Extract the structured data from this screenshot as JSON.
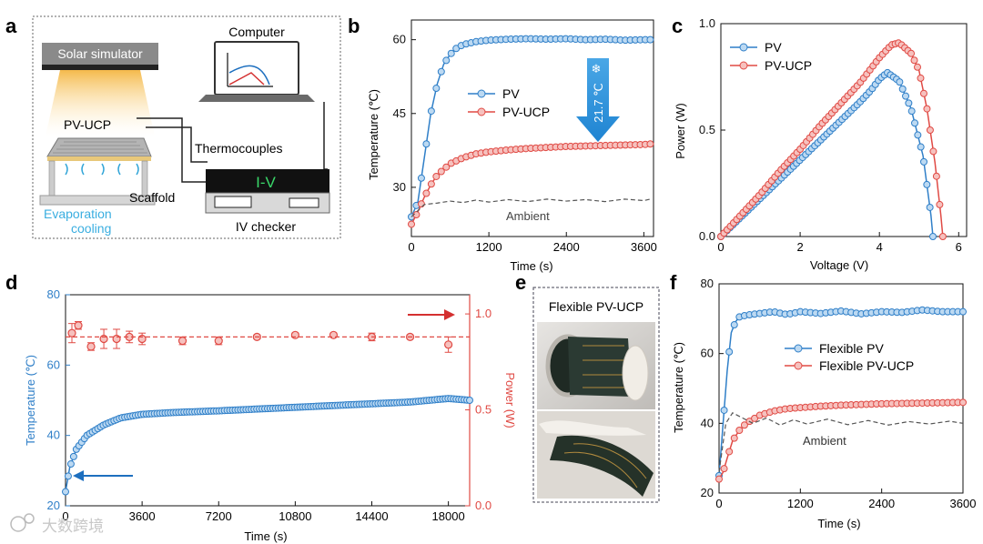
{
  "colors": {
    "blue": "#2f7fc8",
    "red": "#e04a44",
    "dark": "#222222",
    "grey": "#555555",
    "cyan": "#3aaee0",
    "arrowBlue": "#2d9be0",
    "lightGrey": "#c8c8c8"
  },
  "panel_a": {
    "label": "a",
    "solar_simulator": "Solar simulator",
    "computer": "Computer",
    "pv_ucp": "PV-UCP",
    "thermocouples": "Thermocouples",
    "scaffold": "Scaffold",
    "evaporation": "Evaporation",
    "cooling": "cooling",
    "screen_text": "I-V",
    "iv_checker": "IV checker"
  },
  "panel_e": {
    "label": "e",
    "title": "Flexible PV-UCP"
  },
  "watermark": "大数跨境",
  "chart_data": [
    {
      "id": "b",
      "label": "b",
      "type": "line",
      "xlabel": "Time (s)",
      "ylabel": "Temperature (℃)",
      "xlim": [
        0,
        3750
      ],
      "ylim": [
        20,
        64
      ],
      "xticks": [
        0,
        1200,
        2400,
        3600
      ],
      "yticks": [
        30,
        45,
        60
      ],
      "legend": [
        "PV",
        "PV-UCP"
      ],
      "annotation": "21.7 ℃",
      "ambient_label": "Ambient",
      "series": [
        {
          "name": "PV",
          "color": "blue",
          "x": [
            0,
            100,
            200,
            300,
            400,
            500,
            600,
            700,
            800,
            1000,
            1200,
            1500,
            1800,
            2100,
            2400,
            2700,
            3000,
            3300,
            3600,
            3700
          ],
          "y": [
            24,
            27,
            36,
            45,
            51,
            55,
            57,
            58.3,
            59,
            59.6,
            59.9,
            60.1,
            60.2,
            60.1,
            60.2,
            60,
            60.1,
            59.9,
            60,
            60
          ]
        },
        {
          "name": "PV-UCP",
          "color": "red",
          "x": [
            0,
            100,
            200,
            300,
            400,
            600,
            800,
            1000,
            1200,
            1500,
            1800,
            2100,
            2400,
            2700,
            3000,
            3300,
            3600,
            3700
          ],
          "y": [
            22.5,
            25,
            28,
            30.5,
            32.5,
            34.8,
            36,
            36.8,
            37.2,
            37.6,
            37.9,
            38.1,
            38.3,
            38.4,
            38.5,
            38.6,
            38.7,
            38.8
          ]
        },
        {
          "name": "Ambient",
          "color": "grey",
          "dashed": true,
          "x": [
            0,
            200,
            400,
            600,
            800,
            1000,
            1200,
            1500,
            1800,
            2100,
            2400,
            2700,
            3000,
            3300,
            3600,
            3700
          ],
          "y": [
            24,
            26.5,
            26.8,
            27.2,
            26.9,
            27.4,
            27,
            27.5,
            27.1,
            27.6,
            27.2,
            27.5,
            27.1,
            27.6,
            27.3,
            27.6
          ]
        }
      ]
    },
    {
      "id": "c",
      "label": "c",
      "type": "line",
      "xlabel": "Voltage (V)",
      "ylabel": "Power (W)",
      "xlim": [
        0,
        6.2
      ],
      "ylim": [
        0,
        1.0
      ],
      "xticks": [
        0,
        2,
        4,
        6
      ],
      "yticks": [
        0.0,
        0.5,
        1.0
      ],
      "legend": [
        "PV",
        "PV-UCP"
      ],
      "series": [
        {
          "name": "PV",
          "color": "blue",
          "x": [
            0,
            0.5,
            1,
            1.5,
            2,
            2.5,
            3,
            3.5,
            3.8,
            4.0,
            4.2,
            4.5,
            4.8,
            5.1,
            5.3,
            5.35
          ],
          "y": [
            0,
            0.09,
            0.18,
            0.27,
            0.36,
            0.45,
            0.54,
            0.63,
            0.69,
            0.74,
            0.77,
            0.73,
            0.6,
            0.38,
            0.1,
            0
          ]
        },
        {
          "name": "PV-UCP",
          "color": "red",
          "x": [
            0,
            0.5,
            1,
            1.5,
            2,
            2.5,
            3,
            3.5,
            4.0,
            4.3,
            4.5,
            4.8,
            5.0,
            5.2,
            5.4,
            5.55,
            5.6
          ],
          "y": [
            0,
            0.1,
            0.2,
            0.31,
            0.41,
            0.52,
            0.62,
            0.72,
            0.84,
            0.9,
            0.91,
            0.86,
            0.78,
            0.6,
            0.35,
            0.1,
            0
          ]
        }
      ]
    },
    {
      "id": "d",
      "label": "d",
      "type": "line",
      "xlabel": "Time (s)",
      "ylabel": "Temperature (℃)",
      "y2label": "Power (W)",
      "xlim": [
        0,
        19000
      ],
      "ylim": [
        20,
        80
      ],
      "y2lim": [
        0.0,
        1.1
      ],
      "xticks": [
        0,
        3600,
        7200,
        10800,
        14400,
        18000
      ],
      "yticks": [
        20,
        40,
        60,
        80
      ],
      "y2ticks": [
        0.0,
        0.5,
        1.0
      ],
      "series": [
        {
          "name": "Temperature",
          "axis": "left",
          "color": "blue",
          "x": [
            0,
            200,
            500,
            1000,
            1800,
            2600,
            3600,
            5000,
            7200,
            9000,
            10800,
            12600,
            14400,
            16200,
            18000,
            19000
          ],
          "y": [
            24,
            31,
            36,
            40,
            43,
            45,
            46,
            46.5,
            47,
            47.5,
            48,
            48.5,
            49,
            49.5,
            50.5,
            50
          ]
        },
        {
          "name": "Power",
          "axis": "right",
          "color": "red",
          "errorbars": true,
          "x": [
            300,
            600,
            1200,
            1800,
            2400,
            3000,
            3600,
            5500,
            7200,
            9000,
            10800,
            12600,
            14400,
            16200,
            18000
          ],
          "y": [
            0.9,
            0.94,
            0.83,
            0.87,
            0.87,
            0.88,
            0.87,
            0.86,
            0.86,
            0.88,
            0.89,
            0.89,
            0.88,
            0.88,
            0.84
          ],
          "err": [
            0.05,
            0.02,
            0.02,
            0.05,
            0.05,
            0.03,
            0.03,
            0.02,
            0.02,
            0.01,
            0.01,
            0.01,
            0.02,
            0.01,
            0.04
          ]
        },
        {
          "name": "Power reference",
          "axis": "right",
          "color": "red",
          "dashed": true,
          "x": [
            0,
            19000
          ],
          "y": [
            0.88,
            0.88
          ]
        }
      ]
    },
    {
      "id": "f",
      "label": "f",
      "type": "line",
      "xlabel": "Time (s)",
      "ylabel": "Temperature (℃)",
      "xlim": [
        0,
        3600
      ],
      "ylim": [
        20,
        80
      ],
      "xticks": [
        0,
        1200,
        2400,
        3600
      ],
      "yticks": [
        20,
        40,
        60,
        80
      ],
      "legend": [
        "Flexible PV",
        "Flexible PV-UCP"
      ],
      "ambient_label": "Ambient",
      "series": [
        {
          "name": "Flexible PV",
          "color": "blue",
          "x": [
            0,
            60,
            120,
            180,
            240,
            300,
            400,
            600,
            800,
            1000,
            1200,
            1500,
            1800,
            2100,
            2400,
            2700,
            3000,
            3300,
            3600
          ],
          "y": [
            25,
            40,
            55,
            66,
            69,
            70.5,
            71,
            71.5,
            72,
            71.2,
            72,
            71.5,
            72.2,
            71.4,
            72,
            71.8,
            72.5,
            72,
            72
          ]
        },
        {
          "name": "Flexible PV-UCP",
          "color": "red",
          "x": [
            0,
            60,
            120,
            200,
            300,
            400,
            600,
            800,
            1000,
            1200,
            1500,
            1800,
            2100,
            2400,
            2700,
            3000,
            3300,
            3600
          ],
          "y": [
            24,
            26,
            30,
            35,
            38,
            40,
            42.3,
            43.5,
            44.2,
            44.5,
            44.9,
            45.2,
            45.4,
            45.6,
            45.7,
            45.8,
            45.9,
            46
          ]
        },
        {
          "name": "Ambient",
          "color": "grey",
          "dashed": true,
          "x": [
            0,
            100,
            200,
            300,
            500,
            700,
            900,
            1100,
            1300,
            1600,
            1900,
            2200,
            2500,
            2800,
            3100,
            3400,
            3600
          ],
          "y": [
            26,
            40,
            43,
            42,
            40,
            41.5,
            39.5,
            41,
            39.8,
            41.2,
            39.6,
            40.8,
            39.5,
            40.5,
            39.8,
            40.6,
            40
          ]
        }
      ]
    }
  ]
}
